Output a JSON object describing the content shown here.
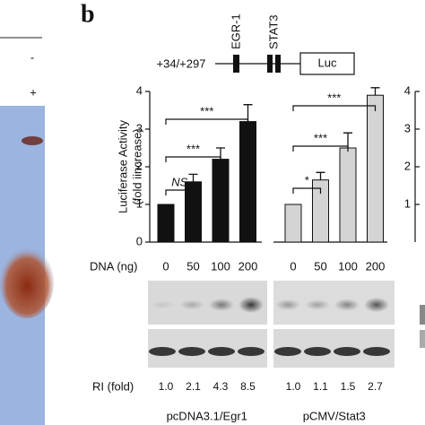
{
  "panel_label": "b",
  "left_panel": {
    "lane_labels": [
      "-",
      "+"
    ]
  },
  "construct": {
    "position": "+34/+297",
    "sites": [
      "EGR-1",
      "STAT3"
    ],
    "reporter": "Luc"
  },
  "chart_data": {
    "type": "bar",
    "y_label": [
      "Luciferase Activity",
      "(fold iincrease)"
    ],
    "ylim": [
      0,
      4
    ],
    "yticks": [
      0,
      1,
      2,
      3,
      4
    ],
    "x_label": "DNA (ng)",
    "ri_label": "RI (fold)",
    "groups": [
      {
        "name": "pcDNA3.1/Egr1",
        "color": "#111111",
        "categories": [
          0,
          50,
          100,
          200
        ],
        "values": [
          1,
          1.6,
          2.2,
          3.2
        ],
        "errors": [
          null,
          0.2,
          0.3,
          0.45
        ],
        "ri": [
          "1.0",
          "2.1",
          "4.3",
          "8.5"
        ],
        "significance": [
          {
            "label": "NS",
            "from": 0,
            "to": 1
          },
          {
            "label": "***",
            "from": 0,
            "to": 2
          },
          {
            "label": "***",
            "from": 0,
            "to": 3
          }
        ]
      },
      {
        "name": "pCMV/Stat3",
        "color": "#d4d4d4",
        "categories": [
          0,
          50,
          100,
          200
        ],
        "values": [
          1,
          1.65,
          2.5,
          3.9
        ],
        "errors": [
          null,
          0.2,
          0.4,
          0.2
        ],
        "ri": [
          "1.0",
          "1.1",
          "1.5",
          "2.7"
        ],
        "significance": [
          {
            "label": "*",
            "from": 0,
            "to": 1
          },
          {
            "label": "***",
            "from": 0,
            "to": 2
          },
          {
            "label": "***",
            "from": 0,
            "to": 3
          }
        ]
      }
    ]
  },
  "right_panel": {
    "yticks": [
      4,
      3,
      2,
      1
    ]
  }
}
